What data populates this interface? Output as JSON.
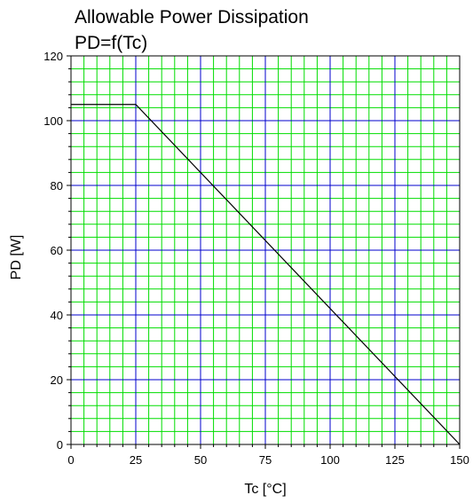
{
  "chart_data": {
    "type": "line",
    "title": "Allowable Power Dissipation",
    "subtitle": "PD=f(Tc)",
    "xlabel": "Tc [°C]",
    "ylabel": "PD [W]",
    "xlim": [
      0,
      150
    ],
    "ylim": [
      0,
      120
    ],
    "x_ticks": [
      "0",
      "25",
      "50",
      "75",
      "100",
      "125",
      "150"
    ],
    "y_ticks": [
      "0",
      "20",
      "40",
      "60",
      "80",
      "100",
      "120"
    ],
    "grid": true,
    "series": [
      {
        "x": [
          0,
          25,
          150
        ],
        "y": [
          105,
          105,
          0
        ]
      }
    ],
    "colors": {
      "major_grid": "#0000cc",
      "minor_grid": "#00dd00",
      "line": "#000000",
      "frame": "#000000"
    }
  }
}
